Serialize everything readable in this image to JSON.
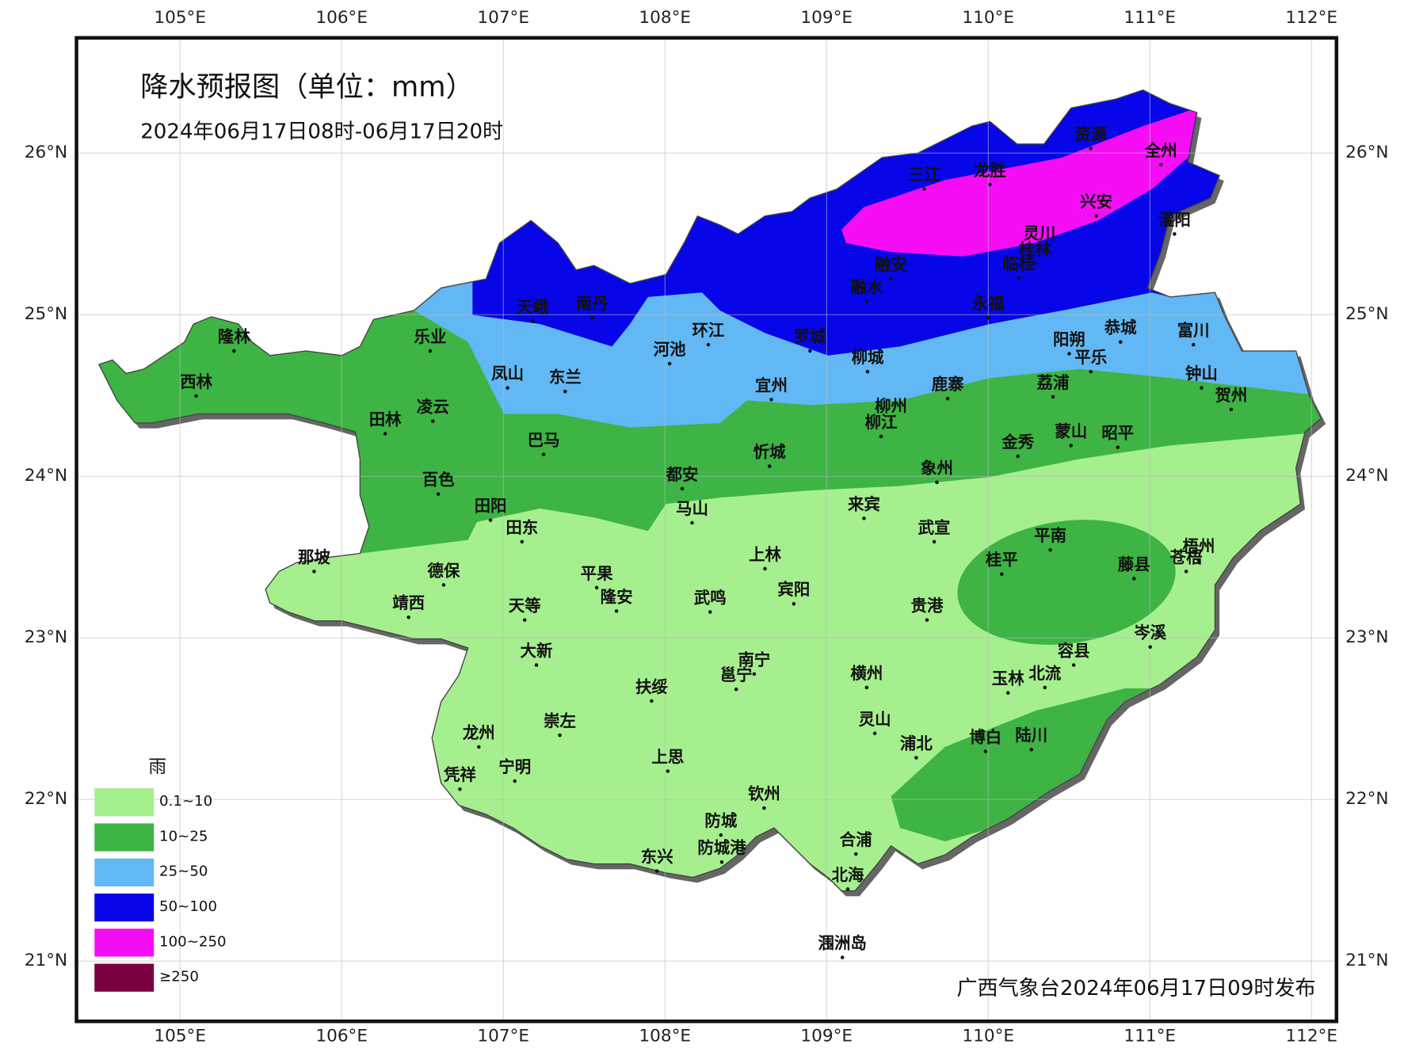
{
  "title": "降水预报图（单位：mm）",
  "subtitle": "2024年06月17日08时-06月17日20时",
  "footer": "广西气象台2024年06月17日09时发布",
  "legend": {
    "title": "雨",
    "items": [
      {
        "label": "0.1~10",
        "color": "#a6ef8e"
      },
      {
        "label": "10~25",
        "color": "#3db444"
      },
      {
        "label": "25~50",
        "color": "#62b8f4"
      },
      {
        "label": "50~100",
        "color": "#0606e8"
      },
      {
        "label": "100~250",
        "color": "#f50ef5"
      },
      {
        "label": "≥250",
        "color": "#7a0040"
      }
    ]
  },
  "lon_ticks": [
    {
      "value": 105,
      "label": "105°E"
    },
    {
      "value": 106,
      "label": "106°E"
    },
    {
      "value": 107,
      "label": "107°E"
    },
    {
      "value": 108,
      "label": "108°E"
    },
    {
      "value": 109,
      "label": "109°E"
    },
    {
      "value": 110,
      "label": "110°E"
    },
    {
      "value": 111,
      "label": "111°E"
    },
    {
      "value": 112,
      "label": "112°E"
    }
  ],
  "lat_ticks": [
    {
      "value": 26,
      "label": "26°N"
    },
    {
      "value": 25,
      "label": "25°N"
    },
    {
      "value": 24,
      "label": "24°N"
    },
    {
      "value": 23,
      "label": "23°N"
    },
    {
      "value": 22,
      "label": "22°N"
    },
    {
      "value": 21,
      "label": "21°N"
    }
  ],
  "cities": [
    "资源",
    "全州",
    "三江",
    "龙胜",
    "兴安",
    "灌阳",
    "灵川",
    "桂林",
    "临桂",
    "融安",
    "融水",
    "永福",
    "天峨",
    "南丹",
    "环江",
    "河池",
    "罗城",
    "恭城",
    "富川",
    "阳朔",
    "平乐",
    "乐业",
    "隆林",
    "西林",
    "凤山",
    "东兰",
    "宜州",
    "柳城",
    "钟山",
    "贺州",
    "荔浦",
    "鹿寨",
    "柳州",
    "柳江",
    "凌云",
    "田林",
    "巴马",
    "金秀",
    "蒙山",
    "昭平",
    "忻城",
    "都安",
    "象州",
    "百色",
    "田阳",
    "马山",
    "来宾",
    "田东",
    "武宣",
    "平南",
    "梧州",
    "苍梧",
    "那坡",
    "德保",
    "上林",
    "桂平",
    "藤县",
    "平果",
    "靖西",
    "天等",
    "隆安",
    "武鸣",
    "宾阳",
    "贵港",
    "岑溪",
    "大新",
    "容县",
    "南宁",
    "邕宁",
    "横州",
    "北流",
    "玉林",
    "扶绥",
    "崇左",
    "灵山",
    "龙州",
    "博白",
    "陆川",
    "浦北",
    "上思",
    "宁明",
    "凭祥",
    "钦州",
    "防城",
    "防城港",
    "合浦",
    "东兴",
    "北海",
    "涠洲岛"
  ]
}
